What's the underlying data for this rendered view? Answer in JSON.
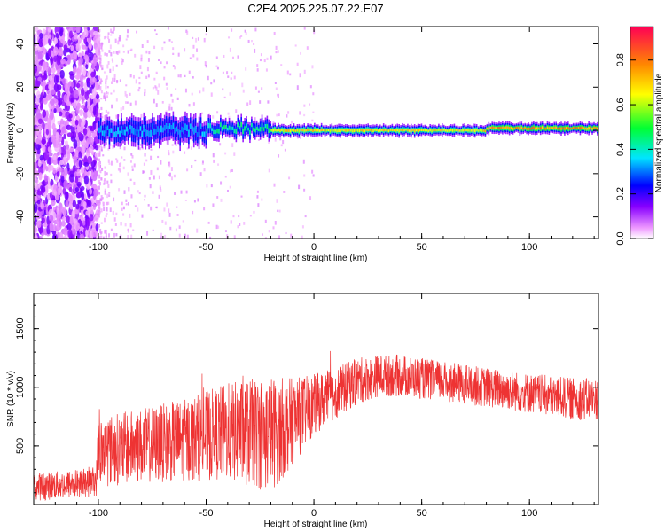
{
  "figure": {
    "title": "C2E4.2025.225.07.22.E07"
  },
  "chart_data": [
    {
      "type": "heatmap",
      "xlabel": "Height of straight line (km)",
      "ylabel": "Frequency (Hz)",
      "xlim": [
        -130,
        132
      ],
      "ylim": [
        -50,
        48
      ],
      "xticks": [
        -100,
        -50,
        0,
        50,
        100
      ],
      "yticks": [
        -40,
        -20,
        0,
        20,
        40
      ],
      "grid": false,
      "colormap": [
        "#ffffff",
        "#cc66ff",
        "#6600ff",
        "#0000ff",
        "#00e5ff",
        "#00ff33",
        "#ffff00",
        "#ff6600",
        "#ff0066"
      ],
      "colorbar": {
        "label": "Normalized spectral amplitude",
        "range": [
          0,
          0.95
        ],
        "ticks": [
          0.0,
          0.2,
          0.4,
          0.6,
          0.8
        ]
      },
      "ridge": {
        "description_values": "dominant frequency near 0 Hz across height",
        "segments": [
          {
            "x_from": -100,
            "x_to": -50,
            "center_hz": 0,
            "half_width_hz": 6,
            "amplitude": 0.35
          },
          {
            "x_from": -50,
            "x_to": -20,
            "center_hz": 1,
            "half_width_hz": 4,
            "amplitude": 0.45
          },
          {
            "x_from": -20,
            "x_to": 80,
            "center_hz": 0,
            "half_width_hz": 2.5,
            "amplitude": 0.7
          },
          {
            "x_from": 80,
            "x_to": 132,
            "center_hz": 1,
            "half_width_hz": 2.5,
            "amplitude": 0.8
          }
        ]
      }
    },
    {
      "type": "line",
      "xlabel": "Height of straight line (km)",
      "ylabel": "SNR (10 * v/v)",
      "xlim": [
        -130,
        132
      ],
      "ylim": [
        0,
        1800
      ],
      "xticks": [
        -100,
        -50,
        0,
        50,
        100
      ],
      "yticks": [
        500,
        1000,
        1500
      ],
      "color": "#ee3333",
      "envelope": {
        "x": [
          -130,
          -115,
          -101,
          -100,
          -80,
          -60,
          -40,
          -20,
          -10,
          0,
          10,
          20,
          30,
          40,
          60,
          80,
          100,
          120,
          132
        ],
        "mean": [
          150,
          170,
          200,
          450,
          500,
          550,
          620,
          600,
          700,
          850,
          950,
          1050,
          1100,
          1100,
          1050,
          1000,
          950,
          900,
          900
        ],
        "spread": [
          120,
          120,
          130,
          300,
          320,
          350,
          420,
          500,
          380,
          260,
          220,
          200,
          180,
          180,
          170,
          170,
          170,
          180,
          180
        ]
      }
    }
  ]
}
